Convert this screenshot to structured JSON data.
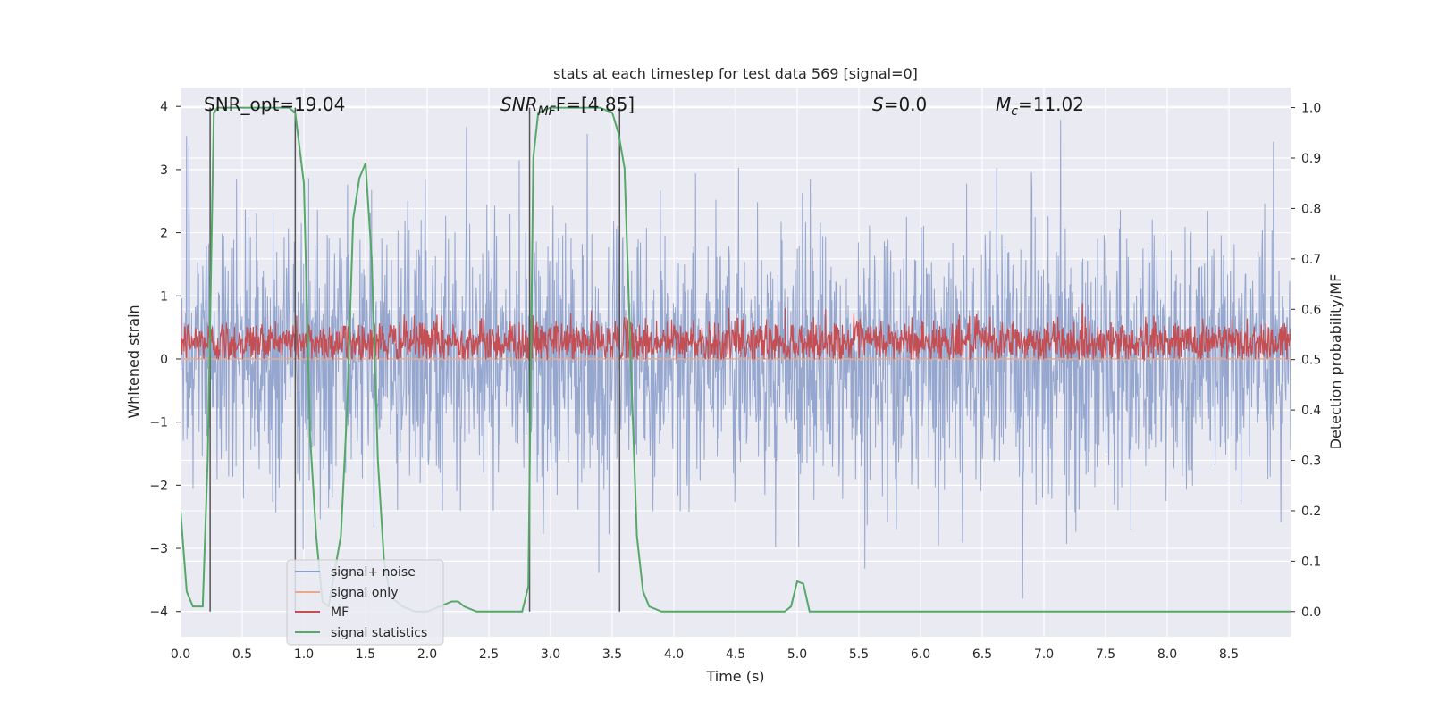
{
  "chart_data": {
    "type": "line",
    "title": "stats at each timestep for test data 569 [signal=0]",
    "xlabel": "Time (s)",
    "ylabel": "Whitened strain",
    "ylabel_right": "Detection probability/MF",
    "xlim": [
      0.0,
      9.0
    ],
    "ylim": [
      -4.4,
      4.3
    ],
    "ylim_right": [
      -0.05,
      1.04
    ],
    "x_ticks": [
      "0.0",
      "0.5",
      "1.0",
      "1.5",
      "2.0",
      "2.5",
      "3.0",
      "3.5",
      "4.0",
      "4.5",
      "5.0",
      "5.5",
      "6.0",
      "6.5",
      "7.0",
      "7.5",
      "8.0",
      "8.5"
    ],
    "y_ticks": [
      "−4",
      "−3",
      "−2",
      "−1",
      "0",
      "1",
      "2",
      "3",
      "4"
    ],
    "y_ticks_right": [
      "0.0",
      "0.1",
      "0.2",
      "0.3",
      "0.4",
      "0.5",
      "0.6",
      "0.7",
      "0.8",
      "0.9",
      "1.0"
    ],
    "grid": true,
    "annotations": {
      "snr_opt": "SNR_opt=19.04",
      "snr_mf_main": "SNR",
      "snr_mf_sub": "MF",
      "snr_mf_value": "F=[4.85]",
      "s_main": "S",
      "s_value": "=0.0",
      "mc_main": "M",
      "mc_sub": "c",
      "mc_value": "=11.02"
    },
    "vertical_lines_x": [
      0.24,
      0.93,
      2.83,
      3.56
    ],
    "series": [
      {
        "name": "signal+ noise",
        "color": "#8da0cb",
        "axis": "left",
        "kind": "noise",
        "amplitude": 2.5
      },
      {
        "name": "signal only",
        "color": "#e8a88a",
        "axis": "left",
        "kind": "flat",
        "value": 0.0
      },
      {
        "name": "MF",
        "color": "#c44e52",
        "axis": "right",
        "kind": "noise_band",
        "center": 0.535,
        "amplitude": 0.05
      },
      {
        "name": "signal statistics",
        "color": "#55a868",
        "axis": "right",
        "x": [
          0.0,
          0.05,
          0.1,
          0.18,
          0.22,
          0.27,
          0.3,
          0.4,
          0.5,
          0.6,
          0.7,
          0.8,
          0.88,
          0.93,
          1.0,
          1.05,
          1.1,
          1.15,
          1.2,
          1.3,
          1.35,
          1.4,
          1.45,
          1.5,
          1.55,
          1.6,
          1.65,
          1.7,
          1.8,
          1.9,
          2.0,
          2.1,
          2.2,
          2.25,
          2.3,
          2.4,
          2.5,
          2.6,
          2.7,
          2.77,
          2.82,
          2.86,
          2.9,
          3.0,
          3.2,
          3.4,
          3.5,
          3.55,
          3.6,
          3.65,
          3.7,
          3.75,
          3.8,
          3.9,
          4.0,
          4.5,
          4.9,
          4.95,
          5.0,
          5.05,
          5.1,
          5.2,
          5.5,
          6.0,
          7.0,
          8.0,
          9.0
        ],
        "y": [
          0.2,
          0.04,
          0.01,
          0.01,
          0.3,
          0.99,
          1.0,
          1.0,
          1.0,
          1.0,
          1.0,
          1.0,
          1.0,
          0.99,
          0.85,
          0.35,
          0.15,
          0.02,
          0.01,
          0.15,
          0.4,
          0.78,
          0.86,
          0.89,
          0.7,
          0.3,
          0.1,
          0.03,
          0.01,
          0.0,
          0.0,
          0.01,
          0.02,
          0.02,
          0.01,
          0.0,
          0.0,
          0.0,
          0.0,
          0.0,
          0.05,
          0.9,
          0.99,
          1.0,
          1.0,
          1.0,
          0.99,
          0.95,
          0.88,
          0.5,
          0.15,
          0.04,
          0.01,
          0.0,
          0.0,
          0.0,
          0.0,
          0.01,
          0.06,
          0.055,
          0.0,
          0.0,
          0.0,
          0.0,
          0.0,
          0.0,
          0.0
        ]
      }
    ],
    "legend_position": "lower-left"
  }
}
